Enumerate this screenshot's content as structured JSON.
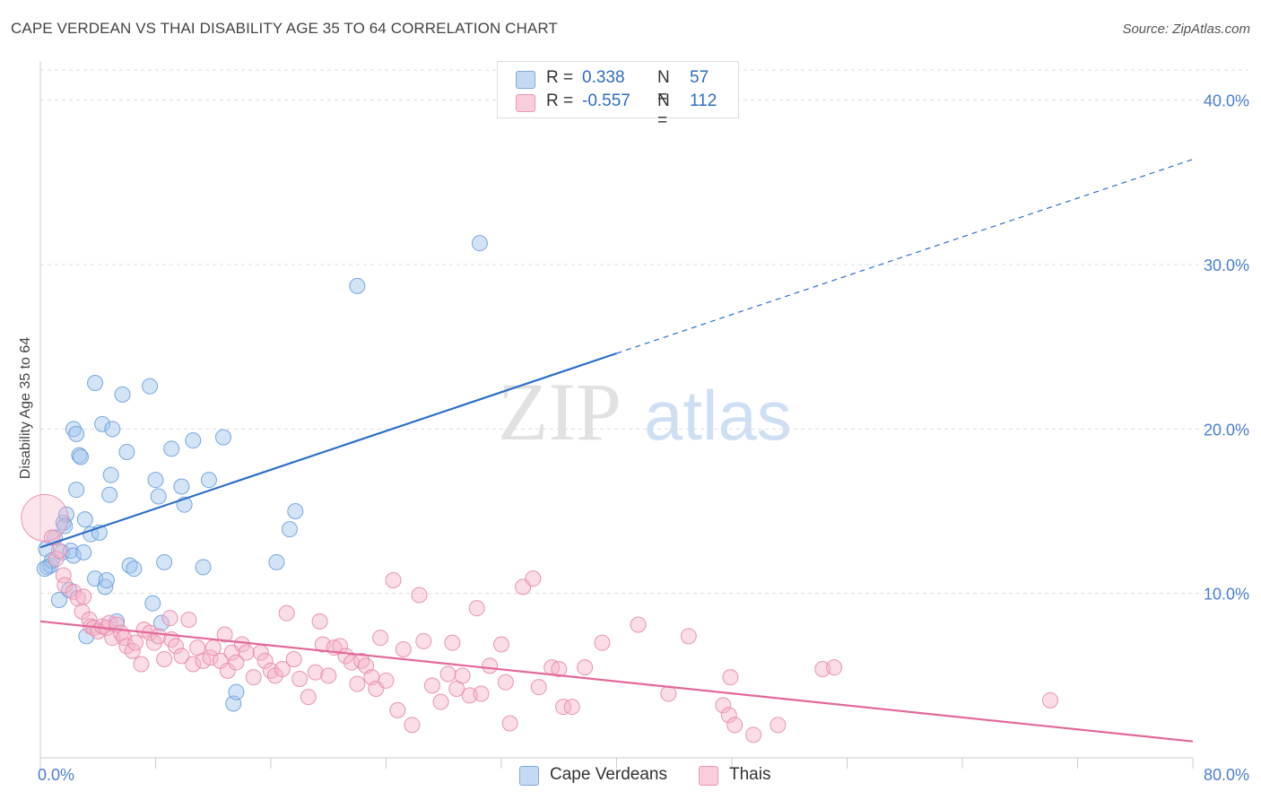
{
  "title": "CAPE VERDEAN VS THAI DISABILITY AGE 35 TO 64 CORRELATION CHART",
  "source": "Source: ZipAtlas.com",
  "watermark": {
    "zip": "ZIP",
    "atlas": "atlas"
  },
  "legend": {
    "r_label": "R =",
    "n_label": "N =",
    "rows": [
      {
        "r": "0.338",
        "n": "57",
        "color": "#9ec3ee"
      },
      {
        "r": "-0.557",
        "n": "112",
        "color": "#f5b3c8"
      }
    ]
  },
  "chart_data": {
    "type": "scatter",
    "xlabel": "",
    "ylabel": "Disability Age 35 to 64",
    "xlim": [
      0,
      80
    ],
    "ylim": [
      0,
      42
    ],
    "x_tick_labels": [
      "0.0%",
      "80.0%"
    ],
    "y_ticks": [
      10,
      20,
      30,
      40
    ],
    "y_tick_labels": [
      "10.0%",
      "20.0%",
      "30.0%",
      "40.0%"
    ],
    "grid": "horizontal dashed",
    "legend_position": "top-center",
    "series": [
      {
        "name": "Cape Verdeans",
        "color": "#9ec3ee",
        "stroke": "#6a9fdc",
        "line_color": "#2e6fcc",
        "trend": {
          "x0": 0,
          "y0": 12.8,
          "x1": 40,
          "y1": 24.6,
          "dash_to_x": 80,
          "dash_to_y": 36.4
        },
        "points": [
          [
            0.4,
            12.7
          ],
          [
            0.5,
            11.6
          ],
          [
            0.7,
            11.7
          ],
          [
            0.8,
            12.0
          ],
          [
            1.0,
            13.4
          ],
          [
            1.3,
            9.6
          ],
          [
            1.6,
            14.3
          ],
          [
            1.5,
            12.5
          ],
          [
            1.8,
            14.8
          ],
          [
            1.7,
            14.1
          ],
          [
            2.0,
            10.2
          ],
          [
            2.1,
            12.6
          ],
          [
            2.3,
            12.3
          ],
          [
            2.3,
            20.0
          ],
          [
            2.5,
            19.7
          ],
          [
            2.5,
            16.3
          ],
          [
            2.7,
            18.4
          ],
          [
            2.8,
            18.3
          ],
          [
            3.0,
            12.5
          ],
          [
            3.1,
            14.5
          ],
          [
            3.2,
            7.4
          ],
          [
            3.5,
            13.6
          ],
          [
            3.8,
            22.8
          ],
          [
            3.8,
            10.9
          ],
          [
            4.1,
            13.7
          ],
          [
            4.3,
            20.3
          ],
          [
            4.5,
            10.4
          ],
          [
            4.6,
            10.8
          ],
          [
            4.8,
            16.0
          ],
          [
            4.9,
            17.2
          ],
          [
            5.0,
            20.0
          ],
          [
            5.3,
            8.3
          ],
          [
            5.7,
            22.1
          ],
          [
            6.0,
            18.6
          ],
          [
            6.2,
            11.7
          ],
          [
            6.5,
            11.5
          ],
          [
            7.6,
            22.6
          ],
          [
            7.8,
            9.4
          ],
          [
            8.0,
            16.9
          ],
          [
            8.2,
            15.9
          ],
          [
            8.4,
            8.2
          ],
          [
            8.6,
            11.9
          ],
          [
            9.1,
            18.8
          ],
          [
            9.8,
            16.5
          ],
          [
            10.0,
            15.4
          ],
          [
            10.6,
            19.3
          ],
          [
            11.3,
            11.6
          ],
          [
            11.7,
            16.9
          ],
          [
            12.7,
            19.5
          ],
          [
            13.4,
            3.3
          ],
          [
            13.6,
            4.0
          ],
          [
            16.4,
            11.9
          ],
          [
            17.3,
            13.9
          ],
          [
            17.7,
            15.0
          ],
          [
            22.0,
            28.7
          ],
          [
            30.5,
            31.3
          ],
          [
            0.3,
            11.5
          ]
        ]
      },
      {
        "name": "Thais",
        "color": "#f5b3c8",
        "stroke": "#e88aaa",
        "line_color": "#e3689a",
        "trend": {
          "x0": 0,
          "y0": 8.3,
          "x1": 80,
          "y1": 1.0
        },
        "points": [
          [
            0.3,
            14.6
          ],
          [
            0.8,
            13.4
          ],
          [
            1.1,
            12.1
          ],
          [
            1.3,
            12.6
          ],
          [
            1.6,
            11.1
          ],
          [
            1.7,
            10.5
          ],
          [
            2.3,
            10.1
          ],
          [
            2.6,
            9.7
          ],
          [
            2.9,
            8.9
          ],
          [
            3.0,
            9.8
          ],
          [
            3.4,
            8.4
          ],
          [
            3.5,
            8.0
          ],
          [
            3.7,
            7.9
          ],
          [
            4.0,
            7.7
          ],
          [
            4.3,
            8.0
          ],
          [
            4.6,
            7.9
          ],
          [
            4.8,
            8.2
          ],
          [
            5.0,
            7.3
          ],
          [
            5.3,
            8.1
          ],
          [
            5.6,
            7.6
          ],
          [
            5.8,
            7.3
          ],
          [
            6.0,
            6.8
          ],
          [
            6.4,
            6.5
          ],
          [
            6.6,
            7.0
          ],
          [
            7.0,
            5.7
          ],
          [
            7.2,
            7.8
          ],
          [
            7.6,
            7.6
          ],
          [
            7.9,
            7.0
          ],
          [
            8.2,
            7.4
          ],
          [
            8.6,
            6.0
          ],
          [
            9.0,
            8.5
          ],
          [
            9.1,
            7.2
          ],
          [
            9.4,
            6.8
          ],
          [
            9.8,
            6.2
          ],
          [
            10.3,
            8.4
          ],
          [
            10.6,
            5.7
          ],
          [
            10.9,
            6.7
          ],
          [
            11.3,
            5.9
          ],
          [
            11.8,
            6.1
          ],
          [
            12.0,
            6.7
          ],
          [
            12.5,
            5.9
          ],
          [
            12.8,
            7.5
          ],
          [
            13.0,
            5.3
          ],
          [
            13.3,
            6.4
          ],
          [
            13.6,
            5.8
          ],
          [
            14.0,
            6.9
          ],
          [
            14.3,
            6.4
          ],
          [
            14.8,
            4.9
          ],
          [
            15.3,
            6.4
          ],
          [
            15.6,
            5.9
          ],
          [
            16.0,
            5.3
          ],
          [
            16.3,
            5.0
          ],
          [
            16.8,
            5.4
          ],
          [
            17.1,
            8.8
          ],
          [
            17.6,
            6.0
          ],
          [
            18.0,
            4.8
          ],
          [
            18.6,
            3.7
          ],
          [
            19.1,
            5.2
          ],
          [
            19.4,
            8.3
          ],
          [
            19.6,
            6.9
          ],
          [
            20.0,
            5.0
          ],
          [
            20.4,
            6.7
          ],
          [
            20.8,
            6.8
          ],
          [
            21.2,
            6.2
          ],
          [
            21.6,
            5.8
          ],
          [
            22.0,
            4.5
          ],
          [
            22.3,
            5.9
          ],
          [
            22.6,
            5.6
          ],
          [
            23.0,
            4.9
          ],
          [
            23.3,
            4.2
          ],
          [
            23.6,
            7.3
          ],
          [
            24.0,
            4.7
          ],
          [
            24.5,
            10.8
          ],
          [
            24.8,
            2.9
          ],
          [
            25.2,
            6.6
          ],
          [
            25.8,
            2.0
          ],
          [
            26.3,
            9.9
          ],
          [
            26.6,
            7.1
          ],
          [
            27.2,
            4.4
          ],
          [
            27.8,
            3.4
          ],
          [
            28.3,
            5.1
          ],
          [
            28.6,
            7.0
          ],
          [
            28.9,
            4.2
          ],
          [
            29.3,
            5.0
          ],
          [
            29.8,
            3.8
          ],
          [
            30.3,
            9.1
          ],
          [
            30.6,
            3.9
          ],
          [
            31.2,
            5.6
          ],
          [
            32.0,
            6.9
          ],
          [
            32.3,
            4.6
          ],
          [
            32.6,
            2.1
          ],
          [
            33.5,
            10.4
          ],
          [
            34.2,
            10.9
          ],
          [
            34.6,
            4.3
          ],
          [
            35.5,
            5.5
          ],
          [
            36.3,
            3.1
          ],
          [
            36.9,
            3.1
          ],
          [
            37.8,
            5.5
          ],
          [
            39.0,
            7.0
          ],
          [
            41.5,
            8.1
          ],
          [
            43.6,
            3.9
          ],
          [
            45.0,
            7.4
          ],
          [
            47.4,
            3.2
          ],
          [
            47.8,
            2.6
          ],
          [
            47.9,
            4.9
          ],
          [
            48.2,
            2.0
          ],
          [
            51.2,
            2.0
          ],
          [
            54.3,
            5.4
          ],
          [
            55.1,
            5.5
          ],
          [
            70.1,
            3.5
          ],
          [
            49.5,
            1.4
          ],
          [
            36.0,
            5.4
          ]
        ]
      }
    ]
  },
  "bottom_legend": [
    "Cape Verdeans",
    "Thais"
  ]
}
